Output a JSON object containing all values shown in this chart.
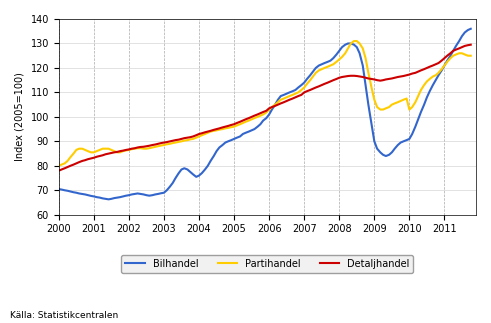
{
  "title": "",
  "ylabel": "Index (2005=100)",
  "xlabel": "",
  "source": "Källa: Statistikcentralen",
  "ylim": [
    60,
    140
  ],
  "yticks": [
    60,
    70,
    80,
    90,
    100,
    110,
    120,
    130,
    140
  ],
  "xlim_start": 2000.0,
  "xlim_end": 2011.9,
  "xtick_years": [
    2000,
    2001,
    2002,
    2003,
    2004,
    2005,
    2006,
    2007,
    2008,
    2009,
    2010,
    2011
  ],
  "line_colors": {
    "Bilhandel": "#3366CC",
    "Partihandel": "#FFCC00",
    "Detaljhandel": "#CC0000"
  },
  "line_widths": {
    "Bilhandel": 1.5,
    "Partihandel": 1.5,
    "Detaljhandel": 1.5
  },
  "Bilhandel": {
    "x": [
      2000.0,
      2000.08,
      2000.17,
      2000.25,
      2000.33,
      2000.42,
      2000.5,
      2000.58,
      2000.67,
      2000.75,
      2000.83,
      2000.92,
      2001.0,
      2001.08,
      2001.17,
      2001.25,
      2001.33,
      2001.42,
      2001.5,
      2001.58,
      2001.67,
      2001.75,
      2001.83,
      2001.92,
      2002.0,
      2002.08,
      2002.17,
      2002.25,
      2002.33,
      2002.42,
      2002.5,
      2002.58,
      2002.67,
      2002.75,
      2002.83,
      2002.92,
      2003.0,
      2003.08,
      2003.17,
      2003.25,
      2003.33,
      2003.42,
      2003.5,
      2003.58,
      2003.67,
      2003.75,
      2003.83,
      2003.92,
      2004.0,
      2004.08,
      2004.17,
      2004.25,
      2004.33,
      2004.42,
      2004.5,
      2004.58,
      2004.67,
      2004.75,
      2004.83,
      2004.92,
      2005.0,
      2005.08,
      2005.17,
      2005.25,
      2005.33,
      2005.42,
      2005.5,
      2005.58,
      2005.67,
      2005.75,
      2005.83,
      2005.92,
      2006.0,
      2006.08,
      2006.17,
      2006.25,
      2006.33,
      2006.42,
      2006.5,
      2006.58,
      2006.67,
      2006.75,
      2006.83,
      2006.92,
      2007.0,
      2007.08,
      2007.17,
      2007.25,
      2007.33,
      2007.42,
      2007.5,
      2007.58,
      2007.67,
      2007.75,
      2007.83,
      2007.92,
      2008.0,
      2008.08,
      2008.17,
      2008.25,
      2008.33,
      2008.42,
      2008.5,
      2008.58,
      2008.67,
      2008.75,
      2008.83,
      2008.92,
      2009.0,
      2009.08,
      2009.17,
      2009.25,
      2009.33,
      2009.42,
      2009.5,
      2009.58,
      2009.67,
      2009.75,
      2009.83,
      2009.92,
      2010.0,
      2010.08,
      2010.17,
      2010.25,
      2010.33,
      2010.42,
      2010.5,
      2010.58,
      2010.67,
      2010.75,
      2010.83,
      2010.92,
      2011.0,
      2011.08,
      2011.17,
      2011.25,
      2011.33,
      2011.42,
      2011.5,
      2011.58,
      2011.67,
      2011.75
    ],
    "y": [
      70.5,
      70.3,
      70.0,
      69.8,
      69.5,
      69.2,
      69.0,
      68.7,
      68.5,
      68.3,
      68.0,
      67.7,
      67.5,
      67.2,
      67.0,
      66.7,
      66.5,
      66.3,
      66.5,
      66.8,
      67.0,
      67.2,
      67.5,
      67.8,
      68.0,
      68.3,
      68.5,
      68.7,
      68.5,
      68.3,
      68.0,
      67.8,
      68.0,
      68.3,
      68.5,
      68.8,
      69.0,
      70.0,
      71.5,
      73.0,
      75.0,
      77.0,
      78.5,
      79.0,
      78.5,
      77.5,
      76.5,
      75.5,
      76.0,
      77.0,
      78.5,
      80.0,
      82.0,
      84.0,
      86.0,
      87.5,
      88.5,
      89.5,
      90.0,
      90.5,
      91.0,
      91.5,
      92.0,
      93.0,
      93.5,
      94.0,
      94.5,
      95.0,
      96.0,
      97.0,
      98.5,
      99.5,
      101.0,
      103.0,
      105.0,
      107.0,
      108.5,
      109.0,
      109.5,
      110.0,
      110.5,
      111.0,
      112.0,
      113.0,
      114.0,
      115.5,
      117.0,
      118.5,
      120.0,
      121.0,
      121.5,
      122.0,
      122.5,
      123.0,
      124.0,
      125.5,
      127.0,
      128.5,
      129.5,
      130.0,
      130.0,
      129.5,
      128.5,
      126.0,
      121.0,
      113.0,
      105.0,
      97.0,
      90.0,
      87.0,
      85.5,
      84.5,
      84.0,
      84.5,
      85.5,
      87.0,
      88.5,
      89.5,
      90.0,
      90.5,
      91.0,
      93.0,
      96.0,
      99.0,
      102.0,
      105.0,
      108.0,
      110.5,
      113.0,
      115.0,
      117.0,
      119.0,
      121.0,
      123.0,
      125.0,
      127.0,
      129.0,
      131.0,
      133.0,
      134.5,
      135.5,
      136.0
    ]
  },
  "Partihandel": {
    "x": [
      2000.0,
      2000.08,
      2000.17,
      2000.25,
      2000.33,
      2000.42,
      2000.5,
      2000.58,
      2000.67,
      2000.75,
      2000.83,
      2000.92,
      2001.0,
      2001.08,
      2001.17,
      2001.25,
      2001.33,
      2001.42,
      2001.5,
      2001.58,
      2001.67,
      2001.75,
      2001.83,
      2001.92,
      2002.0,
      2002.08,
      2002.17,
      2002.25,
      2002.33,
      2002.42,
      2002.5,
      2002.58,
      2002.67,
      2002.75,
      2002.83,
      2002.92,
      2003.0,
      2003.08,
      2003.17,
      2003.25,
      2003.33,
      2003.42,
      2003.5,
      2003.58,
      2003.67,
      2003.75,
      2003.83,
      2003.92,
      2004.0,
      2004.08,
      2004.17,
      2004.25,
      2004.33,
      2004.42,
      2004.5,
      2004.58,
      2004.67,
      2004.75,
      2004.83,
      2004.92,
      2005.0,
      2005.08,
      2005.17,
      2005.25,
      2005.33,
      2005.42,
      2005.5,
      2005.58,
      2005.67,
      2005.75,
      2005.83,
      2005.92,
      2006.0,
      2006.08,
      2006.17,
      2006.25,
      2006.33,
      2006.42,
      2006.5,
      2006.58,
      2006.67,
      2006.75,
      2006.83,
      2006.92,
      2007.0,
      2007.08,
      2007.17,
      2007.25,
      2007.33,
      2007.42,
      2007.5,
      2007.58,
      2007.67,
      2007.75,
      2007.83,
      2007.92,
      2008.0,
      2008.08,
      2008.17,
      2008.25,
      2008.33,
      2008.42,
      2008.5,
      2008.58,
      2008.67,
      2008.75,
      2008.83,
      2008.92,
      2009.0,
      2009.08,
      2009.17,
      2009.25,
      2009.33,
      2009.42,
      2009.5,
      2009.58,
      2009.67,
      2009.75,
      2009.83,
      2009.92,
      2010.0,
      2010.08,
      2010.17,
      2010.25,
      2010.33,
      2010.42,
      2010.5,
      2010.58,
      2010.67,
      2010.75,
      2010.83,
      2010.92,
      2011.0,
      2011.08,
      2011.17,
      2011.25,
      2011.33,
      2011.42,
      2011.5,
      2011.58,
      2011.67,
      2011.75
    ],
    "y": [
      80.0,
      80.5,
      81.0,
      82.0,
      83.5,
      85.0,
      86.5,
      87.0,
      87.0,
      86.5,
      86.0,
      85.5,
      85.5,
      86.0,
      86.5,
      87.0,
      87.0,
      87.0,
      86.5,
      86.0,
      85.5,
      85.5,
      86.0,
      86.3,
      86.5,
      86.8,
      87.0,
      87.2,
      87.2,
      87.0,
      87.0,
      87.2,
      87.5,
      87.8,
      88.0,
      88.3,
      88.5,
      88.8,
      89.0,
      89.3,
      89.5,
      89.8,
      90.0,
      90.3,
      90.5,
      90.8,
      91.0,
      91.5,
      92.0,
      92.5,
      93.0,
      93.5,
      94.0,
      94.3,
      94.5,
      94.8,
      95.0,
      95.3,
      95.5,
      95.8,
      96.0,
      96.5,
      97.0,
      97.5,
      98.0,
      98.5,
      99.0,
      99.5,
      100.0,
      100.5,
      101.0,
      101.8,
      103.0,
      104.0,
      105.0,
      106.0,
      107.0,
      107.5,
      108.0,
      108.5,
      109.0,
      109.5,
      110.0,
      111.0,
      112.0,
      113.5,
      115.0,
      116.5,
      118.0,
      119.0,
      119.5,
      120.0,
      120.5,
      121.0,
      121.5,
      122.5,
      123.5,
      124.5,
      126.0,
      128.0,
      130.0,
      131.0,
      131.0,
      130.0,
      128.0,
      124.0,
      118.0,
      112.0,
      107.0,
      104.0,
      103.0,
      103.0,
      103.5,
      104.0,
      105.0,
      105.5,
      106.0,
      106.5,
      107.0,
      107.5,
      103.0,
      104.0,
      106.0,
      108.5,
      111.0,
      113.0,
      114.5,
      115.5,
      116.5,
      117.0,
      118.0,
      119.5,
      121.0,
      122.5,
      124.0,
      125.0,
      125.5,
      126.0,
      126.0,
      125.5,
      125.0,
      125.0
    ]
  },
  "Detaljhandel": {
    "x": [
      2000.0,
      2000.08,
      2000.17,
      2000.25,
      2000.33,
      2000.42,
      2000.5,
      2000.58,
      2000.67,
      2000.75,
      2000.83,
      2000.92,
      2001.0,
      2001.08,
      2001.17,
      2001.25,
      2001.33,
      2001.42,
      2001.5,
      2001.58,
      2001.67,
      2001.75,
      2001.83,
      2001.92,
      2002.0,
      2002.08,
      2002.17,
      2002.25,
      2002.33,
      2002.42,
      2002.5,
      2002.58,
      2002.67,
      2002.75,
      2002.83,
      2002.92,
      2003.0,
      2003.08,
      2003.17,
      2003.25,
      2003.33,
      2003.42,
      2003.5,
      2003.58,
      2003.67,
      2003.75,
      2003.83,
      2003.92,
      2004.0,
      2004.08,
      2004.17,
      2004.25,
      2004.33,
      2004.42,
      2004.5,
      2004.58,
      2004.67,
      2004.75,
      2004.83,
      2004.92,
      2005.0,
      2005.08,
      2005.17,
      2005.25,
      2005.33,
      2005.42,
      2005.5,
      2005.58,
      2005.67,
      2005.75,
      2005.83,
      2005.92,
      2006.0,
      2006.08,
      2006.17,
      2006.25,
      2006.33,
      2006.42,
      2006.5,
      2006.58,
      2006.67,
      2006.75,
      2006.83,
      2006.92,
      2007.0,
      2007.08,
      2007.17,
      2007.25,
      2007.33,
      2007.42,
      2007.5,
      2007.58,
      2007.67,
      2007.75,
      2007.83,
      2007.92,
      2008.0,
      2008.08,
      2008.17,
      2008.25,
      2008.33,
      2008.42,
      2008.5,
      2008.58,
      2008.67,
      2008.75,
      2008.83,
      2008.92,
      2009.0,
      2009.08,
      2009.17,
      2009.25,
      2009.33,
      2009.42,
      2009.5,
      2009.58,
      2009.67,
      2009.75,
      2009.83,
      2009.92,
      2010.0,
      2010.08,
      2010.17,
      2010.25,
      2010.33,
      2010.42,
      2010.5,
      2010.58,
      2010.67,
      2010.75,
      2010.83,
      2010.92,
      2011.0,
      2011.08,
      2011.17,
      2011.25,
      2011.33,
      2011.42,
      2011.5,
      2011.58,
      2011.67,
      2011.75
    ],
    "y": [
      78.0,
      78.5,
      79.0,
      79.5,
      80.0,
      80.5,
      81.0,
      81.5,
      82.0,
      82.3,
      82.7,
      83.0,
      83.3,
      83.7,
      84.0,
      84.3,
      84.7,
      85.0,
      85.3,
      85.5,
      85.7,
      86.0,
      86.2,
      86.5,
      86.7,
      87.0,
      87.2,
      87.5,
      87.7,
      87.8,
      88.0,
      88.2,
      88.5,
      88.7,
      89.0,
      89.3,
      89.5,
      89.7,
      90.0,
      90.3,
      90.5,
      90.7,
      91.0,
      91.3,
      91.5,
      91.7,
      92.0,
      92.5,
      93.0,
      93.3,
      93.7,
      94.0,
      94.3,
      94.7,
      95.0,
      95.3,
      95.7,
      96.0,
      96.3,
      96.7,
      97.0,
      97.5,
      98.0,
      98.5,
      99.0,
      99.5,
      100.0,
      100.5,
      101.0,
      101.5,
      102.0,
      102.5,
      103.5,
      104.0,
      104.5,
      105.0,
      105.5,
      106.0,
      106.5,
      107.0,
      107.5,
      108.0,
      108.5,
      109.0,
      110.0,
      110.5,
      111.0,
      111.5,
      112.0,
      112.5,
      113.0,
      113.5,
      114.0,
      114.5,
      115.0,
      115.5,
      116.0,
      116.3,
      116.5,
      116.7,
      116.8,
      116.8,
      116.7,
      116.5,
      116.3,
      116.0,
      115.7,
      115.5,
      115.3,
      115.0,
      114.8,
      115.0,
      115.3,
      115.5,
      115.7,
      116.0,
      116.3,
      116.5,
      116.7,
      117.0,
      117.3,
      117.7,
      118.0,
      118.5,
      119.0,
      119.5,
      120.0,
      120.5,
      121.0,
      121.5,
      122.0,
      123.0,
      124.0,
      125.0,
      126.0,
      127.0,
      127.5,
      128.0,
      128.5,
      129.0,
      129.3,
      129.5
    ]
  },
  "legend_labels": [
    "Bilhandel",
    "Partihandel",
    "Detaljhandel"
  ],
  "background_color": "#FFFFFF",
  "grid_color": "#CCCCCC"
}
